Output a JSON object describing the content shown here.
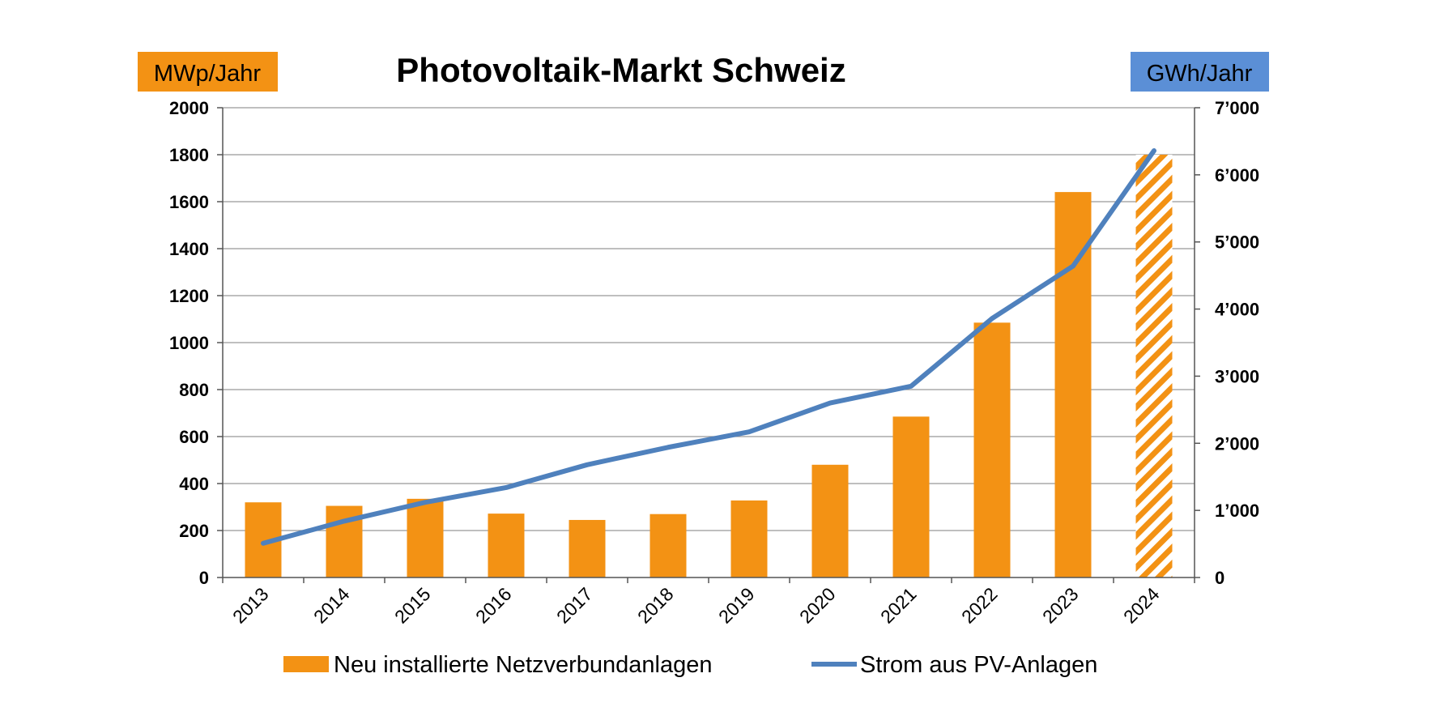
{
  "chart_data": {
    "type": "bar",
    "title": "Photovoltaik-Markt Schweiz",
    "y_left_unit": "MWp/Jahr",
    "y_right_unit": "GWh/Jahr",
    "y_left_range": [
      0,
      2000
    ],
    "y_left_ticks": [
      "0",
      "200",
      "400",
      "600",
      "800",
      "1000",
      "1200",
      "1400",
      "1600",
      "1800",
      "2000"
    ],
    "y_right_range": [
      0,
      7000
    ],
    "y_right_ticks": [
      "0",
      "1’000",
      "2’000",
      "3’000",
      "4’000",
      "5’000",
      "6’000",
      "7’000"
    ],
    "categories": [
      "2013",
      "2014",
      "2015",
      "2016",
      "2017",
      "2018",
      "2019",
      "2020",
      "2021",
      "2022",
      "2023",
      "2024"
    ],
    "grid": true,
    "legend_position": "bottom",
    "series": [
      {
        "name": "Neu installierte Netzverbundanlagen",
        "type": "bar",
        "axis": "left",
        "color": "#f39214",
        "values": [
          320,
          305,
          335,
          272,
          245,
          270,
          328,
          480,
          685,
          1085,
          1641,
          1800
        ],
        "hatched_last": true
      },
      {
        "name": "Strom aus PV-Anlagen",
        "type": "line",
        "axis": "right",
        "color": "#4f81bd",
        "values": [
          510,
          840,
          1120,
          1340,
          1680,
          1940,
          2170,
          2600,
          2850,
          3860,
          4640,
          6360
        ]
      }
    ],
    "colors": {
      "unit_left_bg": "#f39214",
      "unit_right_bg": "#5b8fd6",
      "grid": "#999999"
    }
  }
}
